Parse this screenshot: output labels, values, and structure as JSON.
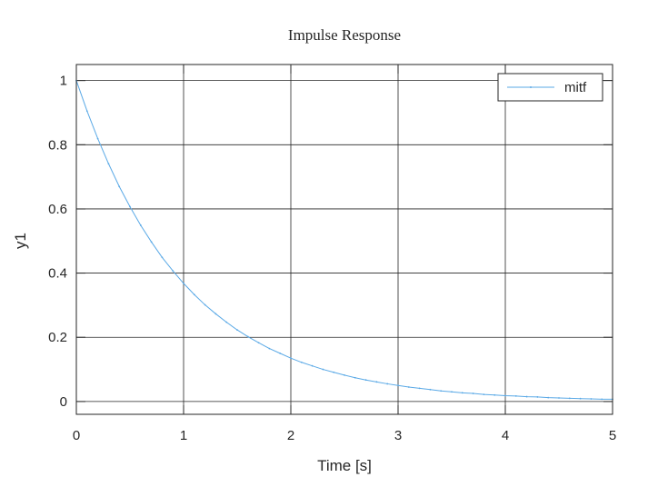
{
  "chart_data": {
    "type": "line",
    "title": "Impulse Response",
    "xlabel": "Time [s]",
    "ylabel": "y1",
    "xlim": [
      0,
      5
    ],
    "ylim": [
      -0.04,
      1.05
    ],
    "xticks": [
      0,
      1,
      2,
      3,
      4,
      5
    ],
    "xtick_labels": [
      "0",
      "1",
      "2",
      "3",
      "4",
      "5"
    ],
    "yticks": [
      0,
      0.2,
      0.4,
      0.6,
      0.8,
      1
    ],
    "ytick_labels": [
      "0",
      "0.2",
      "0.4",
      "0.6",
      "0.8",
      "1"
    ],
    "grid": true,
    "legend_position": "top-right",
    "series": [
      {
        "name": "mitf",
        "color": "#5aa9e6",
        "x": [
          0,
          0.1,
          0.2,
          0.3,
          0.4,
          0.5,
          0.6,
          0.7,
          0.8,
          0.9,
          1.0,
          1.1,
          1.2,
          1.3,
          1.4,
          1.5,
          1.6,
          1.7,
          1.8,
          1.9,
          2.0,
          2.1,
          2.2,
          2.3,
          2.4,
          2.5,
          2.6,
          2.7,
          2.8,
          2.9,
          3.0,
          3.1,
          3.2,
          3.3,
          3.4,
          3.5,
          3.6,
          3.7,
          3.8,
          3.9,
          4.0,
          4.1,
          4.2,
          4.3,
          4.4,
          4.5,
          4.6,
          4.7,
          4.8,
          4.9,
          5.0
        ],
        "y": [
          1.0,
          0.905,
          0.819,
          0.741,
          0.67,
          0.607,
          0.549,
          0.497,
          0.449,
          0.407,
          0.368,
          0.333,
          0.301,
          0.273,
          0.247,
          0.223,
          0.202,
          0.183,
          0.165,
          0.15,
          0.135,
          0.122,
          0.111,
          0.1,
          0.091,
          0.082,
          0.074,
          0.067,
          0.061,
          0.055,
          0.05,
          0.045,
          0.041,
          0.037,
          0.033,
          0.03,
          0.027,
          0.025,
          0.022,
          0.02,
          0.018,
          0.017,
          0.015,
          0.014,
          0.012,
          0.011,
          0.01,
          0.009,
          0.008,
          0.007,
          0.007
        ]
      }
    ]
  }
}
